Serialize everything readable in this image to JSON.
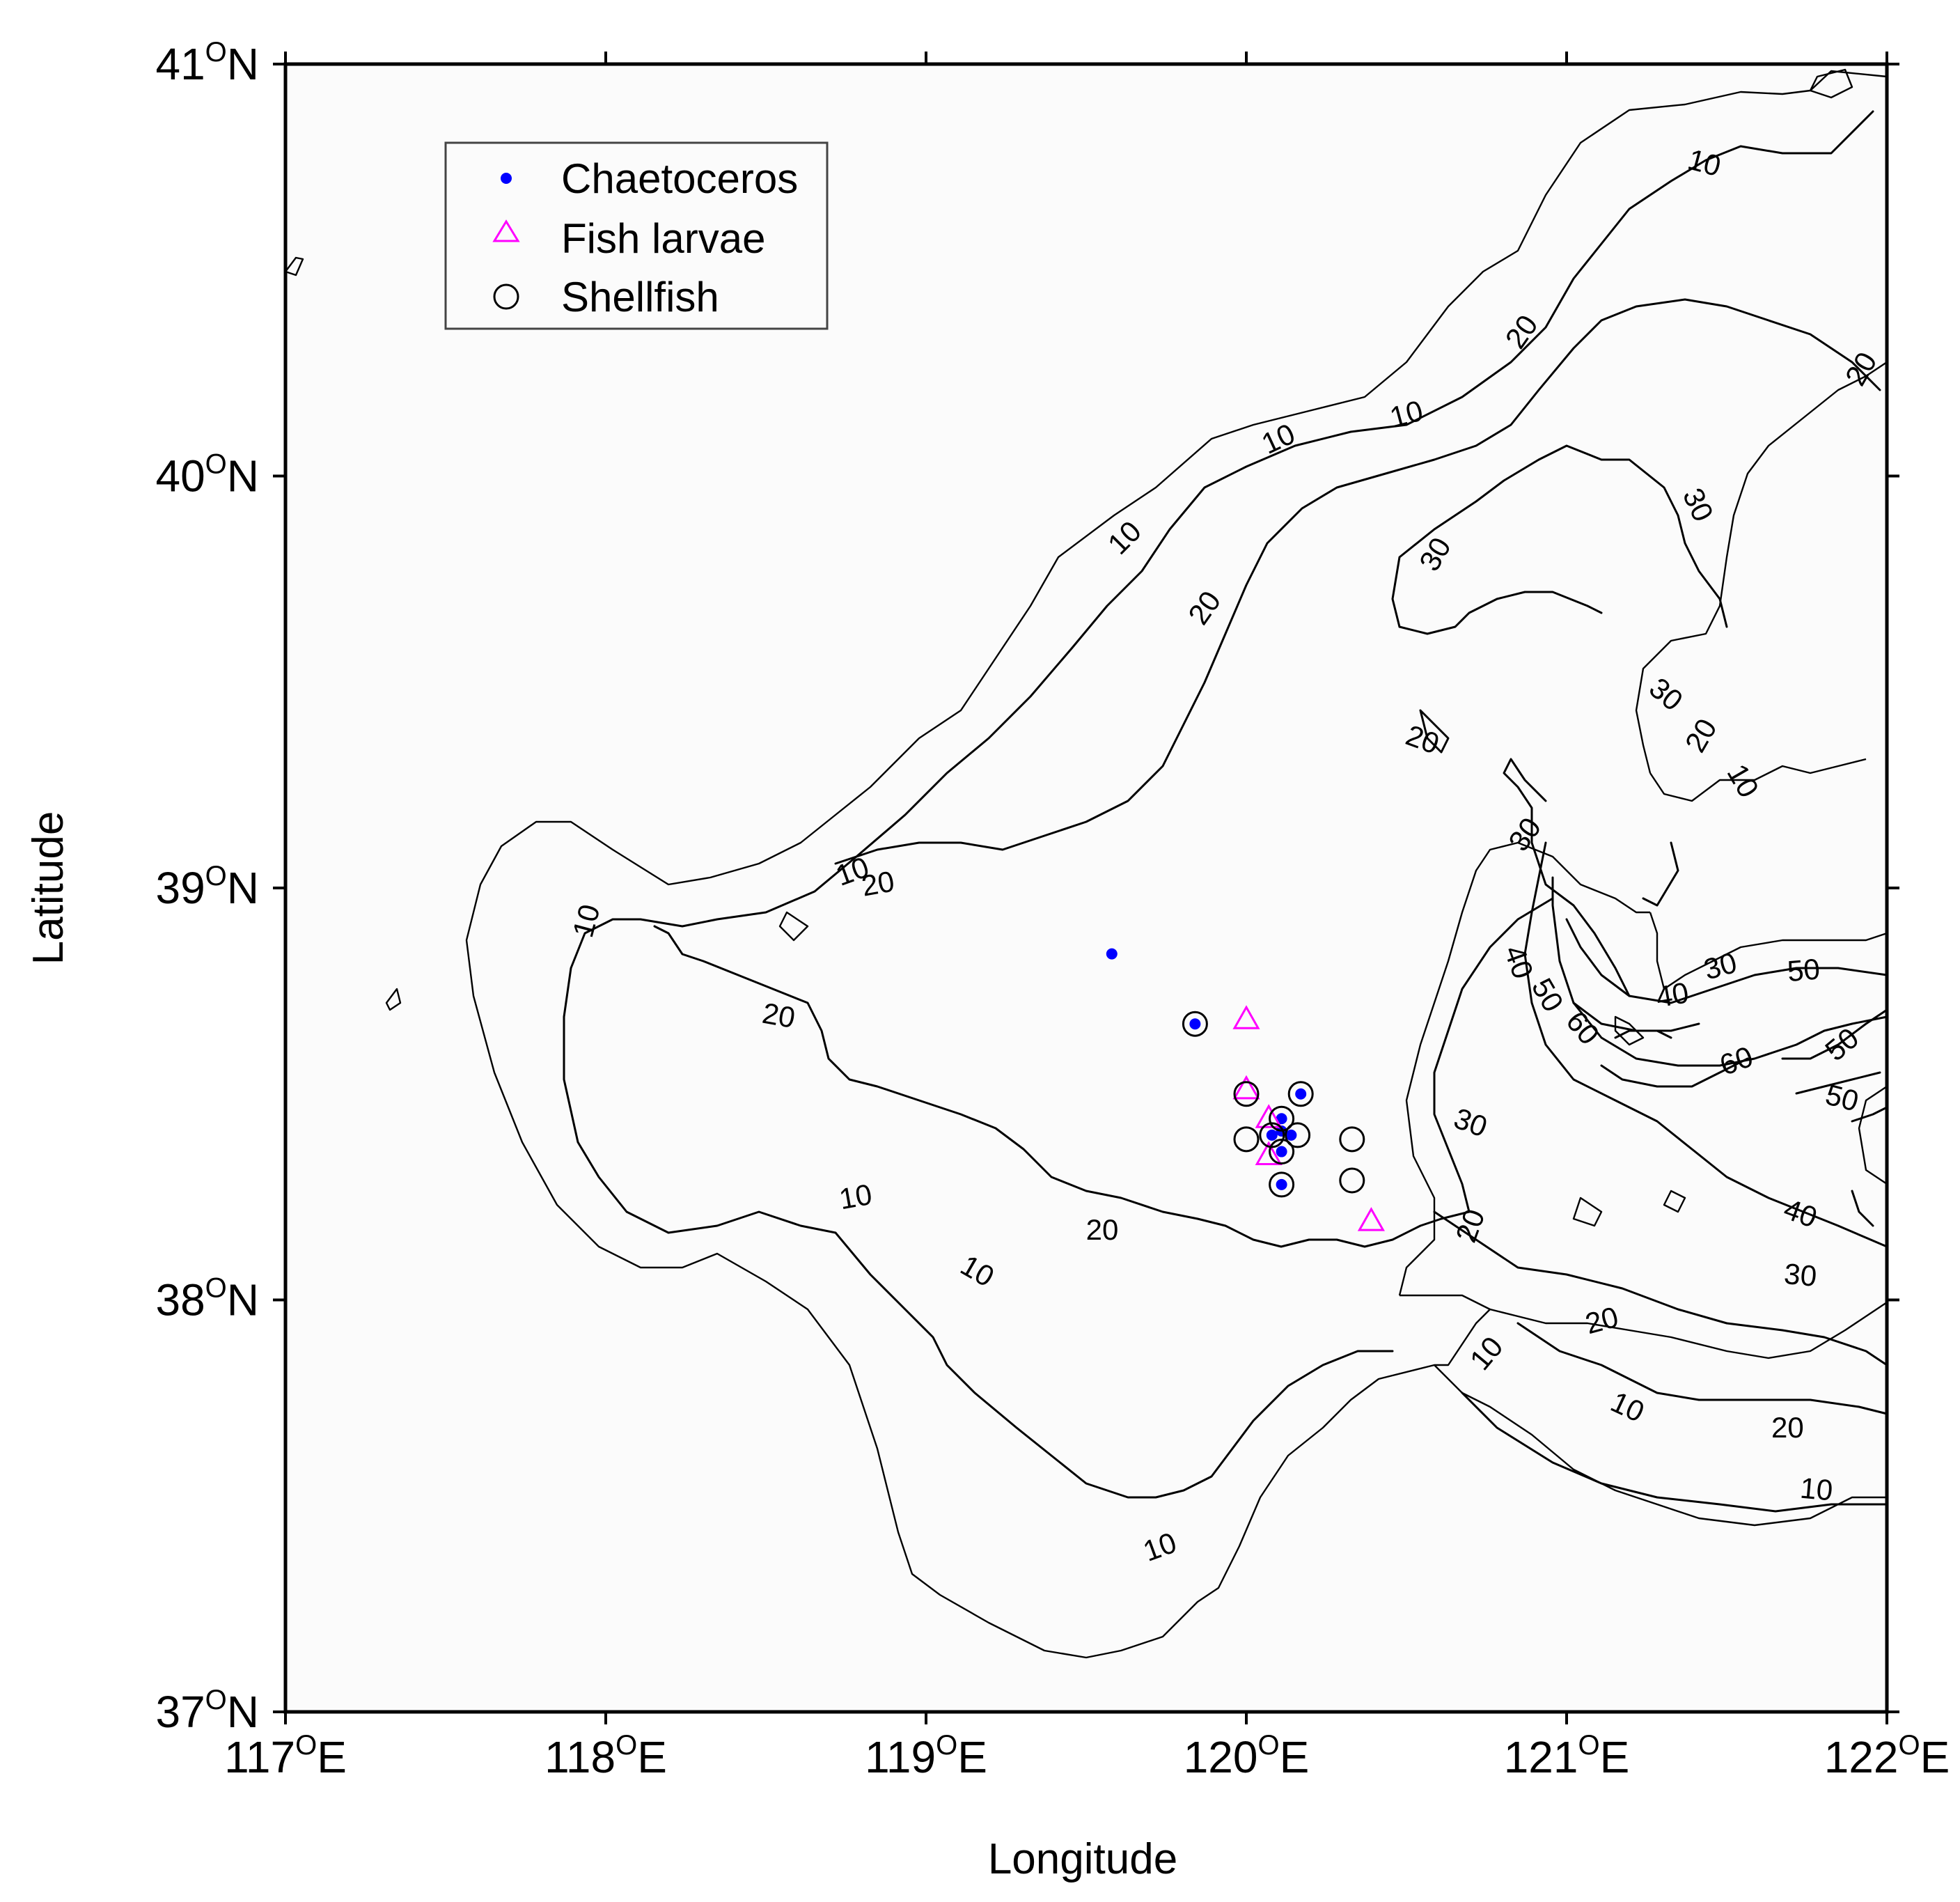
{
  "chart_data": {
    "type": "map-scatter",
    "title": "",
    "xlabel": "Longitude",
    "ylabel": "Latitude",
    "xlim": [
      117,
      122
    ],
    "ylim": [
      37,
      41
    ],
    "grid": false,
    "legend_position": "top-left",
    "x_ticks": [
      {
        "value": 117,
        "deg": "117",
        "sup": "O",
        "hemi": "E"
      },
      {
        "value": 118,
        "deg": "118",
        "sup": "O",
        "hemi": "E"
      },
      {
        "value": 119,
        "deg": "119",
        "sup": "O",
        "hemi": "E"
      },
      {
        "value": 120,
        "deg": "120",
        "sup": "O",
        "hemi": "E"
      },
      {
        "value": 121,
        "deg": "121",
        "sup": "O",
        "hemi": "E"
      },
      {
        "value": 122,
        "deg": "122",
        "sup": "O",
        "hemi": "E"
      }
    ],
    "y_ticks": [
      {
        "value": 37,
        "deg": "37",
        "sup": "O",
        "hemi": "N"
      },
      {
        "value": 38,
        "deg": "38",
        "sup": "O",
        "hemi": "N"
      },
      {
        "value": 39,
        "deg": "39",
        "sup": "O",
        "hemi": "N"
      },
      {
        "value": 40,
        "deg": "40",
        "sup": "O",
        "hemi": "N"
      },
      {
        "value": 41,
        "deg": "41",
        "sup": "O",
        "hemi": "N"
      }
    ],
    "series": [
      {
        "name": "Chaetoceros",
        "marker": "dot",
        "color": "#0000ff",
        "points": [
          {
            "lon": 119.58,
            "lat": 38.84
          },
          {
            "lon": 119.84,
            "lat": 38.67
          },
          {
            "lon": 120.17,
            "lat": 38.5
          },
          {
            "lon": 120.11,
            "lat": 38.44
          },
          {
            "lon": 120.08,
            "lat": 38.4
          },
          {
            "lon": 120.11,
            "lat": 38.41
          },
          {
            "lon": 120.14,
            "lat": 38.4
          },
          {
            "lon": 120.11,
            "lat": 38.36
          },
          {
            "lon": 120.11,
            "lat": 38.28
          }
        ]
      },
      {
        "name": "Fish larvae",
        "marker": "triangle",
        "color": "#ff00ff",
        "points": [
          {
            "lon": 120.0,
            "lat": 38.68
          },
          {
            "lon": 120.0,
            "lat": 38.51
          },
          {
            "lon": 120.07,
            "lat": 38.44
          },
          {
            "lon": 120.07,
            "lat": 38.35
          },
          {
            "lon": 120.39,
            "lat": 38.19
          }
        ]
      },
      {
        "name": "Shellfish",
        "marker": "circle",
        "color": "#000000",
        "points": [
          {
            "lon": 119.84,
            "lat": 38.67
          },
          {
            "lon": 120.0,
            "lat": 38.5
          },
          {
            "lon": 120.17,
            "lat": 38.5
          },
          {
            "lon": 120.11,
            "lat": 38.44
          },
          {
            "lon": 120.0,
            "lat": 38.39
          },
          {
            "lon": 120.08,
            "lat": 38.4
          },
          {
            "lon": 120.16,
            "lat": 38.4
          },
          {
            "lon": 120.11,
            "lat": 38.36
          },
          {
            "lon": 120.33,
            "lat": 38.39
          },
          {
            "lon": 120.11,
            "lat": 38.28
          },
          {
            "lon": 120.33,
            "lat": 38.29
          }
        ]
      }
    ],
    "contour_labels": [
      {
        "text": "10",
        "lon": 121.43,
        "lat": 40.76,
        "rot": 15
      },
      {
        "text": "20",
        "lon": 120.86,
        "lat": 40.35,
        "rot": -55
      },
      {
        "text": "20",
        "lon": 121.92,
        "lat": 40.26,
        "rot": -60
      },
      {
        "text": "10",
        "lon": 120.5,
        "lat": 40.15,
        "rot": -15
      },
      {
        "text": "10",
        "lon": 120.1,
        "lat": 40.09,
        "rot": -25
      },
      {
        "text": "10",
        "lon": 119.62,
        "lat": 39.85,
        "rot": -45
      },
      {
        "text": "30",
        "lon": 121.41,
        "lat": 39.93,
        "rot": 65
      },
      {
        "text": "30",
        "lon": 120.59,
        "lat": 39.81,
        "rot": -60
      },
      {
        "text": "20",
        "lon": 119.87,
        "lat": 39.68,
        "rot": -55
      },
      {
        "text": "30",
        "lon": 121.31,
        "lat": 39.47,
        "rot": 40
      },
      {
        "text": "20",
        "lon": 120.55,
        "lat": 39.36,
        "rot": 20
      },
      {
        "text": "20",
        "lon": 121.42,
        "lat": 39.37,
        "rot": -60
      },
      {
        "text": "10",
        "lon": 121.55,
        "lat": 39.26,
        "rot": 60
      },
      {
        "text": "30",
        "lon": 120.87,
        "lat": 39.13,
        "rot": -55
      },
      {
        "text": "10",
        "lon": 118.77,
        "lat": 39.04,
        "rot": -20
      },
      {
        "text": "20",
        "lon": 118.85,
        "lat": 39.01,
        "rot": -10
      },
      {
        "text": "10",
        "lon": 117.94,
        "lat": 38.92,
        "rot": -75
      },
      {
        "text": "40",
        "lon": 120.85,
        "lat": 38.82,
        "rot": 70
      },
      {
        "text": "50",
        "lon": 120.94,
        "lat": 38.74,
        "rot": 60
      },
      {
        "text": "60",
        "lon": 121.05,
        "lat": 38.66,
        "rot": 50
      },
      {
        "text": "30",
        "lon": 121.48,
        "lat": 38.81,
        "rot": -15
      },
      {
        "text": "50",
        "lon": 121.74,
        "lat": 38.8,
        "rot": -5
      },
      {
        "text": "40",
        "lon": 121.33,
        "lat": 38.74,
        "rot": -10
      },
      {
        "text": "60",
        "lon": 121.53,
        "lat": 38.58,
        "rot": -20
      },
      {
        "text": "50",
        "lon": 121.86,
        "lat": 38.62,
        "rot": -40
      },
      {
        "text": "50",
        "lon": 121.86,
        "lat": 38.49,
        "rot": 15
      },
      {
        "text": "20",
        "lon": 118.54,
        "lat": 38.69,
        "rot": 10
      },
      {
        "text": "30",
        "lon": 120.7,
        "lat": 38.43,
        "rot": 20
      },
      {
        "text": "10",
        "lon": 118.78,
        "lat": 38.25,
        "rot": -10
      },
      {
        "text": "20",
        "lon": 119.55,
        "lat": 38.17,
        "rot": 0
      },
      {
        "text": "20",
        "lon": 120.7,
        "lat": 38.18,
        "rot": -70
      },
      {
        "text": "10",
        "lon": 119.16,
        "lat": 38.07,
        "rot": 30
      },
      {
        "text": "40",
        "lon": 121.73,
        "lat": 38.21,
        "rot": 20
      },
      {
        "text": "30",
        "lon": 121.73,
        "lat": 38.06,
        "rot": 5
      },
      {
        "text": "20",
        "lon": 121.11,
        "lat": 37.95,
        "rot": -15
      },
      {
        "text": "10",
        "lon": 120.75,
        "lat": 37.87,
        "rot": -50
      },
      {
        "text": "10",
        "lon": 121.19,
        "lat": 37.74,
        "rot": 25
      },
      {
        "text": "20",
        "lon": 121.69,
        "lat": 37.69,
        "rot": 0
      },
      {
        "text": "10",
        "lon": 121.78,
        "lat": 37.54,
        "rot": 5
      },
      {
        "text": "10",
        "lon": 119.73,
        "lat": 37.4,
        "rot": -20
      }
    ]
  },
  "colors": {
    "chaetoceros": "#0000ff",
    "fish_larvae": "#ff00ff",
    "shellfish": "#000000",
    "plot_background": "#fbfbfb",
    "axes": "#000000"
  }
}
